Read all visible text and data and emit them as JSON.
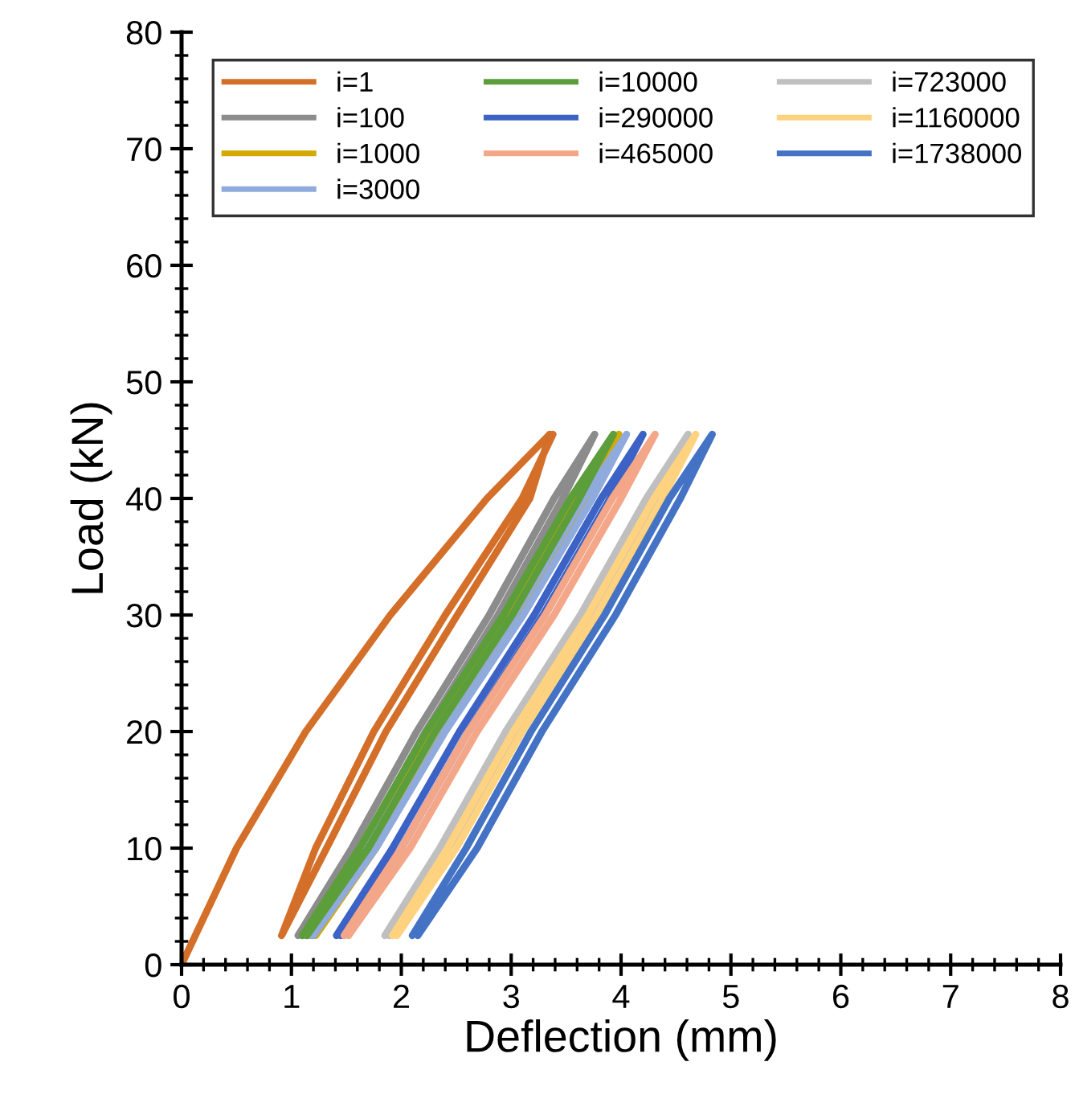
{
  "chart_data": {
    "type": "line",
    "xlabel": "Deflection (mm)",
    "ylabel": "Load (kN)",
    "xlim": [
      0,
      8
    ],
    "ylim": [
      0,
      80
    ],
    "xticks": [
      0,
      1,
      2,
      3,
      4,
      5,
      6,
      7,
      8
    ],
    "yticks": [
      0,
      10,
      20,
      30,
      40,
      50,
      60,
      70,
      80
    ],
    "grid": false,
    "legend": "top",
    "line_style": "solid",
    "series": [
      {
        "name": "i=1",
        "color": "#d46f2a",
        "x": [
          0,
          0.5,
          1.13,
          1.9,
          2.78,
          3.35,
          3.17,
          2.51,
          1.86,
          1.32,
          0.91,
          1.22,
          1.75,
          2.4,
          3.1,
          3.38
        ],
        "values": [
          0,
          10,
          20,
          30,
          40,
          45.5,
          40,
          30,
          20,
          10,
          2.5,
          10,
          20,
          30,
          40,
          45.5
        ]
      },
      {
        "name": "i=100",
        "color": "#8c8c8c",
        "x": [
          1.1,
          1.63,
          2.22,
          2.88,
          3.47,
          3.76,
          3.39,
          2.8,
          2.14,
          1.55,
          1.06
        ],
        "values": [
          2.5,
          10,
          20,
          30,
          40,
          45.5,
          40,
          30,
          20,
          10,
          2.5
        ]
      },
      {
        "name": "i=1000",
        "color": "#d4a900",
        "x": [
          1.22,
          1.77,
          2.38,
          3.07,
          3.68,
          3.98,
          3.6,
          2.99,
          2.3,
          1.69,
          1.18
        ],
        "values": [
          2.5,
          10,
          20,
          30,
          40,
          45.5,
          40,
          30,
          20,
          10,
          2.5
        ]
      },
      {
        "name": "i=3000",
        "color": "#8faadc",
        "x": [
          1.2,
          1.77,
          2.4,
          3.11,
          3.74,
          4.05,
          3.66,
          3.03,
          2.32,
          1.69,
          1.16
        ],
        "values": [
          2.5,
          10,
          20,
          30,
          40,
          45.5,
          40,
          30,
          20,
          10,
          2.5
        ]
      },
      {
        "name": "i=10000",
        "color": "#5c9e3a",
        "x": [
          1.14,
          1.7,
          2.31,
          3.01,
          3.62,
          3.93,
          3.54,
          2.93,
          2.23,
          1.62,
          1.1
        ],
        "values": [
          2.5,
          10,
          20,
          30,
          40,
          45.5,
          40,
          30,
          20,
          10,
          2.5
        ]
      },
      {
        "name": "i=290000",
        "color": "#3b62c4",
        "x": [
          1.45,
          2.0,
          2.61,
          3.29,
          3.9,
          4.2,
          3.82,
          3.21,
          2.53,
          1.92,
          1.41
        ],
        "values": [
          2.5,
          10,
          20,
          30,
          40,
          45.5,
          40,
          30,
          20,
          10,
          2.5
        ]
      },
      {
        "name": "i=465000",
        "color": "#f4a688",
        "x": [
          1.52,
          2.08,
          2.69,
          3.39,
          4.0,
          4.31,
          3.92,
          3.31,
          2.61,
          2.0,
          1.48
        ],
        "values": [
          2.5,
          10,
          20,
          30,
          40,
          45.5,
          40,
          30,
          20,
          10,
          2.5
        ]
      },
      {
        "name": "i=723000",
        "color": "#bfbfbf",
        "x": [
          1.89,
          2.43,
          3.03,
          3.71,
          4.31,
          4.61,
          4.23,
          3.63,
          2.95,
          2.35,
          1.85
        ],
        "values": [
          2.5,
          10,
          20,
          30,
          40,
          45.5,
          40,
          30,
          20,
          10,
          2.5
        ]
      },
      {
        "name": "i=1160000",
        "color": "#ffd27f",
        "x": [
          1.96,
          2.5,
          3.1,
          3.78,
          4.38,
          4.68,
          4.3,
          3.7,
          3.02,
          2.42,
          1.92
        ],
        "values": [
          2.5,
          10,
          20,
          30,
          40,
          45.5,
          40,
          30,
          20,
          10,
          2.5
        ]
      },
      {
        "name": "i=1738000",
        "color": "#4472c4",
        "x": [
          2.15,
          2.69,
          3.28,
          3.95,
          4.54,
          4.83,
          4.44,
          3.85,
          3.18,
          2.59,
          2.1
        ],
        "values": [
          2.5,
          10,
          20,
          30,
          40,
          45.5,
          40,
          30,
          20,
          10,
          2.5
        ]
      }
    ]
  }
}
